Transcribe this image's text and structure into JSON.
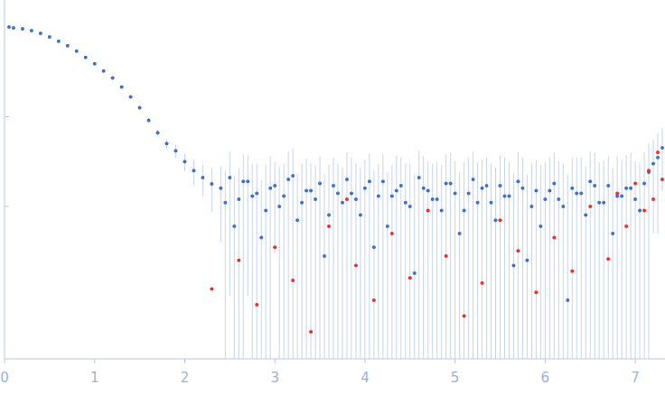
{
  "chart_data": {
    "type": "scatter",
    "log": "y",
    "tick_labels": "x",
    "grid": false,
    "xlim": [
      0,
      7.33
    ],
    "ylim": [
      0.0002,
      2
    ],
    "xticks": [
      0,
      1,
      2,
      3,
      4,
      5,
      6,
      7
    ],
    "yticks": [
      0.1,
      0.01
    ],
    "series": [
      {
        "color": "#3e6fc9",
        "marker": "circle",
        "x": [
          0.05,
          0.1,
          0.2,
          0.3,
          0.4,
          0.5,
          0.6,
          0.7,
          0.8,
          0.9,
          1.0,
          1.1,
          1.2,
          1.3,
          1.4,
          1.5,
          1.6,
          1.7,
          1.8,
          1.9,
          2.0,
          2.1,
          2.2,
          2.3,
          2.4,
          2.5,
          2.6,
          2.7,
          2.8,
          2.9,
          3.0,
          3.1,
          3.2,
          3.3,
          3.4,
          3.5,
          3.6,
          3.7,
          3.8,
          3.9,
          4.0,
          4.1,
          4.2,
          4.3,
          4.4,
          4.5,
          4.6,
          4.7,
          4.8,
          4.9,
          5.0,
          5.1,
          5.2,
          5.3,
          5.4,
          5.5,
          5.6,
          5.7,
          5.8,
          5.9,
          6.0,
          6.1,
          6.2,
          6.3,
          6.4,
          6.5,
          6.6,
          6.7,
          6.8,
          6.9,
          7.0,
          7.1,
          7.2,
          7.3,
          2.45,
          2.55,
          2.65,
          2.75,
          2.85,
          2.95,
          3.05,
          3.15,
          3.25,
          3.35,
          3.45,
          3.55,
          3.65,
          3.75,
          3.85,
          3.95,
          4.05,
          4.15,
          4.25,
          4.35,
          4.45,
          4.55,
          4.65,
          4.75,
          4.85,
          4.95,
          5.05,
          5.15,
          5.25,
          5.35,
          5.45,
          5.55,
          5.65,
          5.75,
          5.85,
          5.95,
          6.05,
          6.15,
          6.25,
          6.35,
          6.45,
          6.55,
          6.65,
          6.75,
          6.85,
          6.95,
          7.05,
          7.15,
          7.25
        ],
        "values": [
          1.0,
          0.977,
          0.955,
          0.912,
          0.851,
          0.776,
          0.692,
          0.617,
          0.537,
          0.457,
          0.389,
          0.324,
          0.27,
          0.214,
          0.166,
          0.126,
          0.0912,
          0.0661,
          0.0501,
          0.0417,
          0.0316,
          0.0251,
          0.0209,
          0.0178,
          0.016,
          0.021,
          0.012,
          0.019,
          0.014,
          0.009,
          0.017,
          0.013,
          0.022,
          0.011,
          0.015,
          0.018,
          0.008,
          0.014,
          0.02,
          0.012,
          0.016,
          0.0035,
          0.019,
          0.013,
          0.017,
          0.01,
          0.021,
          0.015,
          0.012,
          0.018,
          0.014,
          0.009,
          0.02,
          0.016,
          0.011,
          0.017,
          0.013,
          0.019,
          0.0025,
          0.015,
          0.012,
          0.018,
          0.01,
          0.016,
          0.014,
          0.019,
          0.011,
          0.017,
          0.013,
          0.016,
          0.012,
          0.018,
          0.03,
          0.045,
          0.011,
          0.006,
          0.019,
          0.013,
          0.0045,
          0.016,
          0.01,
          0.02,
          0.007,
          0.015,
          0.012,
          0.0028,
          0.017,
          0.011,
          0.014,
          0.008,
          0.019,
          0.013,
          0.006,
          0.015,
          0.011,
          0.0018,
          0.016,
          0.012,
          0.009,
          0.018,
          0.005,
          0.014,
          0.011,
          0.017,
          0.007,
          0.013,
          0.0022,
          0.016,
          0.01,
          0.006,
          0.015,
          0.012,
          0.0009,
          0.014,
          0.008,
          0.017,
          0.011,
          0.005,
          0.013,
          0.016,
          0.009,
          0.024,
          0.035
        ],
        "errors": [
          0.02,
          0.01,
          0.008,
          0.008,
          0.008,
          0.008,
          0.007,
          0.007,
          0.006,
          0.006,
          0.006,
          0.006,
          0.006,
          0.006,
          0.006,
          0.006,
          0.006,
          0.006,
          0.006,
          0.007,
          0.007,
          0.008,
          0.008,
          0.009,
          0.012,
          0.02,
          0.015,
          0.018,
          0.016,
          0.02,
          0.014,
          0.017,
          0.022,
          0.019,
          0.015,
          0.018,
          0.021,
          0.016,
          0.02,
          0.018,
          0.017,
          0.022,
          0.019,
          0.016,
          0.018,
          0.02,
          0.021,
          0.017,
          0.019,
          0.02,
          0.018,
          0.022,
          0.021,
          0.017,
          0.019,
          0.02,
          0.018,
          0.021,
          0.02,
          0.018,
          0.019,
          0.022,
          0.02,
          0.019,
          0.021,
          0.022,
          0.02,
          0.019,
          0.023,
          0.021,
          0.02,
          0.022,
          0.025,
          0.03,
          0.014,
          0.016,
          0.019,
          0.017,
          0.015,
          0.02,
          0.018,
          0.021,
          0.016,
          0.019,
          0.017,
          0.02,
          0.018,
          0.016,
          0.021,
          0.019,
          0.02,
          0.017,
          0.018,
          0.022,
          0.019,
          0.021,
          0.02,
          0.018,
          0.02,
          0.022,
          0.019,
          0.021,
          0.02,
          0.018,
          0.02,
          0.022,
          0.021,
          0.019,
          0.02,
          0.023,
          0.021,
          0.02,
          0.022,
          0.021,
          0.02,
          0.023,
          0.021,
          0.022,
          0.02,
          0.024,
          0.022,
          0.026,
          0.03
        ]
      },
      {
        "color": "#e8302a",
        "marker": "circle",
        "x": [
          2.3,
          2.6,
          2.8,
          3.0,
          3.2,
          3.4,
          3.6,
          3.8,
          3.9,
          4.1,
          4.3,
          4.5,
          4.7,
          4.9,
          5.1,
          5.3,
          5.5,
          5.7,
          5.9,
          6.1,
          6.3,
          6.5,
          6.7,
          6.8,
          6.9,
          7.0,
          7.1,
          7.15,
          7.2,
          7.25,
          7.3
        ],
        "values": [
          0.0012,
          0.0025,
          0.0008,
          0.0035,
          0.0015,
          0.0004,
          0.006,
          0.012,
          0.0022,
          0.0009,
          0.005,
          0.0016,
          0.009,
          0.0028,
          0.0006,
          0.0014,
          0.007,
          0.0032,
          0.0011,
          0.0045,
          0.0019,
          0.01,
          0.0026,
          0.014,
          0.006,
          0.018,
          0.009,
          0.025,
          0.012,
          0.04,
          0.02
        ]
      }
    ]
  }
}
